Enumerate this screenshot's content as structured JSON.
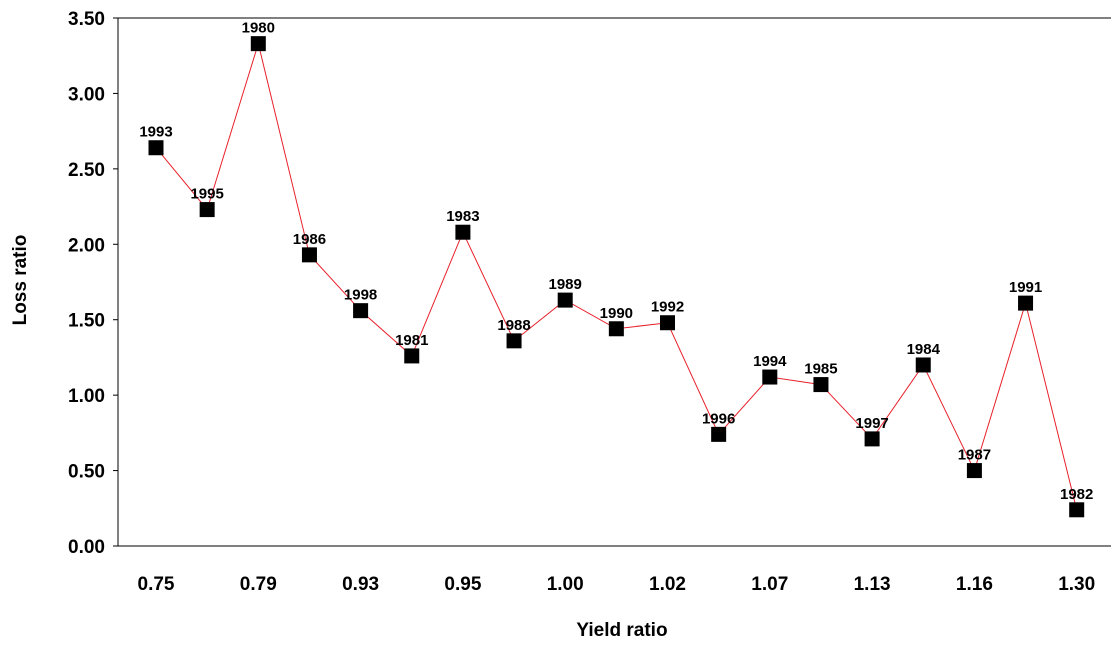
{
  "chart_data": {
    "type": "line",
    "xlabel": "Yield ratio",
    "ylabel": "Loss ratio",
    "ylim": [
      0,
      3.5
    ],
    "y_ticks": [
      "0.00",
      "0.50",
      "1.00",
      "1.50",
      "2.00",
      "2.50",
      "3.00",
      "3.50"
    ],
    "x_tick_labels": [
      "0.75",
      "0.79",
      "0.93",
      "0.95",
      "1.00",
      "1.02",
      "1.07",
      "1.13",
      "1.16",
      "1.30"
    ],
    "grid": false,
    "line_color": "#e8202a",
    "marker_color": "#000000",
    "points": [
      {
        "year": "1993",
        "loss": 2.64
      },
      {
        "year": "1995",
        "loss": 2.23
      },
      {
        "year": "1980",
        "loss": 3.33
      },
      {
        "year": "1986",
        "loss": 1.93
      },
      {
        "year": "1998",
        "loss": 1.56
      },
      {
        "year": "1981",
        "loss": 1.26
      },
      {
        "year": "1983",
        "loss": 2.08
      },
      {
        "year": "1988",
        "loss": 1.36
      },
      {
        "year": "1989",
        "loss": 1.63
      },
      {
        "year": "1990",
        "loss": 1.44
      },
      {
        "year": "1992",
        "loss": 1.48
      },
      {
        "year": "1996",
        "loss": 0.74
      },
      {
        "year": "1994",
        "loss": 1.12
      },
      {
        "year": "1985",
        "loss": 1.07
      },
      {
        "year": "1997",
        "loss": 0.71
      },
      {
        "year": "1984",
        "loss": 1.2
      },
      {
        "year": "1987",
        "loss": 0.5
      },
      {
        "year": "1991",
        "loss": 1.61
      },
      {
        "year": "1982",
        "loss": 0.24
      }
    ]
  }
}
